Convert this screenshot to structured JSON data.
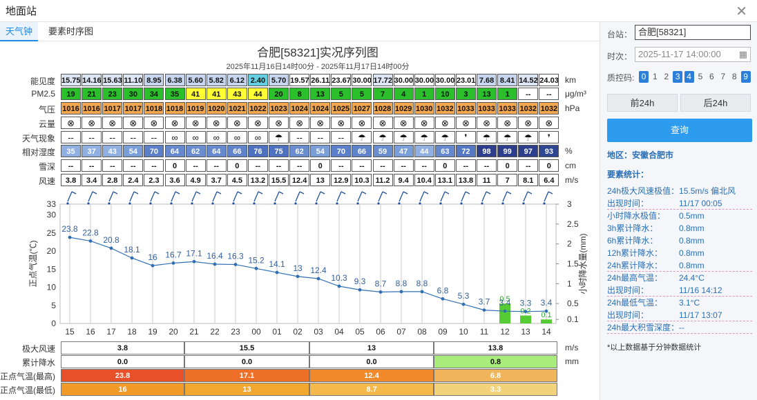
{
  "window": {
    "title": "地面站"
  },
  "tabs": [
    {
      "label": "天气钟",
      "active": true
    },
    {
      "label": "要素时序图",
      "active": false
    }
  ],
  "chart": {
    "title": "合肥[58321]实况序列图",
    "subtitle": "2025年11月16日14时00分 - 2025年11月17日14时00分"
  },
  "hours": [
    "15",
    "16",
    "17",
    "18",
    "19",
    "20",
    "21",
    "22",
    "23",
    "00",
    "01",
    "02",
    "03",
    "04",
    "05",
    "06",
    "07",
    "08",
    "09",
    "10",
    "11",
    "12",
    "13",
    "14"
  ],
  "rows": {
    "visibility": {
      "label": "能见度",
      "unit": "km",
      "values": [
        "15.75",
        "14.16",
        "15.63",
        "11.10",
        "8.95",
        "6.38",
        "5.60",
        "5.82",
        "6.12",
        "2.40",
        "5.70",
        "19.57",
        "26.11",
        "23.67",
        "30.00",
        "17.72",
        "30.00",
        "30.00",
        "30.00",
        "23.01",
        "7.68",
        "8.41",
        "14.52",
        "24.03"
      ],
      "colors": [
        "#dde6f5",
        "#dde6f5",
        "#dde6f5",
        "#dde6f5",
        "#c7d6ee",
        "#c7d6ee",
        "#c7d6ee",
        "#c7d6ee",
        "#c7d6ee",
        "#63cfe0",
        "#c7d6ee",
        "#ffffff",
        "#ffffff",
        "#ffffff",
        "#ffffff",
        "#dde6f5",
        "#ffffff",
        "#ffffff",
        "#ffffff",
        "#ffffff",
        "#c7d6ee",
        "#c7d6ee",
        "#dde6f5",
        "#ffffff"
      ]
    },
    "pm25": {
      "label": "PM2.5",
      "unit": "μg/m³",
      "values": [
        "19",
        "21",
        "23",
        "30",
        "34",
        "35",
        "41",
        "41",
        "43",
        "44",
        "20",
        "8",
        "13",
        "5",
        "5",
        "7",
        "4",
        "1",
        "10",
        "3",
        "13",
        "1",
        "--",
        "--"
      ],
      "colors": [
        "#2bbf2b",
        "#2bbf2b",
        "#2bbf2b",
        "#2bbf2b",
        "#2bbf2b",
        "#2bbf2b",
        "#ffff33",
        "#ffff33",
        "#ffff33",
        "#ffff33",
        "#2bbf2b",
        "#2bbf2b",
        "#2bbf2b",
        "#2bbf2b",
        "#2bbf2b",
        "#2bbf2b",
        "#2bbf2b",
        "#2bbf2b",
        "#2bbf2b",
        "#2bbf2b",
        "#2bbf2b",
        "#2bbf2b",
        "#ffffff",
        "#ffffff"
      ]
    },
    "pressure": {
      "label": "气压",
      "unit": "hPa",
      "values": [
        "1016",
        "1016",
        "1017",
        "1017",
        "1018",
        "1018",
        "1019",
        "1020",
        "1021",
        "1022",
        "1023",
        "1024",
        "1024",
        "1025",
        "1027",
        "1028",
        "1029",
        "1030",
        "1032",
        "1033",
        "1033",
        "1033",
        "1032",
        "1032"
      ],
      "colors": [
        "#f2a650",
        "#f2a650",
        "#f2a650",
        "#f2a650",
        "#f2a650",
        "#f2a650",
        "#f2a650",
        "#f2a650",
        "#f2a650",
        "#f2a650",
        "#f2a650",
        "#f2a650",
        "#f2a650",
        "#f2a650",
        "#f2a650",
        "#f2a650",
        "#f2a650",
        "#f2a650",
        "#f2a650",
        "#f2a650",
        "#f2a650",
        "#f2a650",
        "#f2a650",
        "#f2a650"
      ]
    },
    "cloud": {
      "label": "云量",
      "unit": "",
      "symbol": "⊗"
    },
    "weather": {
      "label": "天气现象",
      "unit": "",
      "values": [
        "--",
        "--",
        "--",
        "--",
        "--",
        "∞",
        "∞",
        "∞",
        "∞",
        "∞",
        "☂",
        "--",
        "--",
        "--",
        "☂",
        "☂",
        "☂",
        "☂",
        "☂",
        "❜",
        "☂",
        "☂",
        "☂",
        "❜"
      ]
    },
    "humidity": {
      "label": "相对湿度",
      "unit": "%",
      "values": [
        "35",
        "37",
        "43",
        "54",
        "70",
        "64",
        "62",
        "64",
        "66",
        "76",
        "75",
        "62",
        "54",
        "70",
        "66",
        "59",
        "47",
        "44",
        "63",
        "72",
        "98",
        "99",
        "97",
        "93"
      ],
      "colors": [
        "#8fb0e0",
        "#8fb0e0",
        "#8fb0e0",
        "#7a9fd8",
        "#5b7fc8",
        "#6589cc",
        "#6a8dcf",
        "#6589cc",
        "#5f84ca",
        "#4e72c0",
        "#4e72c0",
        "#6a8dcf",
        "#7a9fd8",
        "#5b7fc8",
        "#5f84ca",
        "#6a8dcf",
        "#7a9fd8",
        "#8fb0e0",
        "#6589cc",
        "#5578c4",
        "#2d3f8c",
        "#2d3f8c",
        "#2d3f8c",
        "#2f4693"
      ]
    },
    "snow": {
      "label": "雪深",
      "unit": "cm",
      "values": [
        "--",
        "--",
        "--",
        "--",
        "--",
        "0",
        "--",
        "--",
        "0",
        "--",
        "--",
        "--",
        "0",
        "--",
        "--",
        "--",
        "--",
        "--",
        "0",
        "--",
        "--",
        "0",
        "--",
        "0"
      ]
    },
    "wind": {
      "label": "风速",
      "unit": "m/s",
      "values": [
        "3.8",
        "3.4",
        "2.8",
        "2.4",
        "2.3",
        "3.6",
        "4.9",
        "3.7",
        "4.5",
        "13.2",
        "15.5",
        "12.4",
        "13",
        "12.9",
        "10.3",
        "11.2",
        "9.4",
        "10.4",
        "13.1",
        "13.8",
        "11",
        "7",
        "8.1",
        "6.4"
      ]
    }
  },
  "chart_data": {
    "type": "line",
    "x": [
      "15",
      "16",
      "17",
      "18",
      "19",
      "20",
      "21",
      "22",
      "23",
      "00",
      "01",
      "02",
      "03",
      "04",
      "05",
      "06",
      "07",
      "08",
      "09",
      "10",
      "11",
      "12",
      "13",
      "14"
    ],
    "series": [
      {
        "values": [
          23.8,
          22.8,
          20.8,
          18.1,
          16,
          16.7,
          17.1,
          16.4,
          16.3,
          15.2,
          14.1,
          13,
          12.4,
          10.3,
          9.3,
          8.7,
          8.8,
          8.8,
          6.8,
          5.3,
          3.7,
          3.4,
          3.3,
          3.4
        ]
      },
      {
        "values": [
          0,
          0,
          0,
          0,
          0,
          0,
          0,
          0,
          0,
          0,
          0,
          0,
          0,
          0,
          0,
          0,
          0,
          0,
          0,
          0,
          0,
          0.5,
          0.2,
          0.1
        ]
      }
    ],
    "bar_labels": {
      "21": "0.5",
      "22": "0.2",
      "23": "0.1"
    },
    "ylabel": "正点气温(℃)",
    "y2label": "小时降水量(mm)",
    "ylim": [
      0,
      33
    ],
    "y2lim": [
      0,
      3
    ],
    "yticks": [
      "33",
      "30",
      "25",
      "20",
      "15",
      "10",
      "5",
      "0"
    ],
    "y2ticks": [
      "3",
      "2.5",
      "2",
      "1.5",
      "1",
      "0.5",
      "0.1"
    ],
    "line_color": "#2f6fb4",
    "bar_color": "#55cc33"
  },
  "summary": {
    "labels": [
      "极大风速",
      "累计降水",
      "正点气温(最高)",
      "正点气温(最低)"
    ],
    "units": [
      "m/s",
      "mm",
      "",
      ""
    ],
    "segments": [
      {
        "wind": "3.8",
        "rain": "0.0",
        "tmax": "23.8",
        "tmin": "16"
      },
      {
        "wind": "15.5",
        "rain": "0.0",
        "tmax": "17.1",
        "tmin": "13"
      },
      {
        "wind": "13",
        "rain": "0.0",
        "tmax": "12.4",
        "tmin": "8.7"
      },
      {
        "wind": "13.8",
        "rain": "0.8",
        "tmax": "6.8",
        "tmin": "3.3"
      }
    ],
    "colors": {
      "rain": [
        "#ffffff",
        "#ffffff",
        "#ffffff",
        "#a8ec7c"
      ],
      "tmax": [
        "#e8502a",
        "#ee6f28",
        "#f18a2a",
        "#f0b45b"
      ],
      "tmin": [
        "#f29a28",
        "#f2a830",
        "#f4b94a",
        "#f2d27b"
      ]
    }
  },
  "panel": {
    "station_label": "台站：",
    "station_value": "合肥[58321]",
    "time_label": "时次：",
    "time_value": "2025-11-17 14:00:00",
    "qc_label": "质控码:",
    "qc_codes": [
      {
        "v": "0",
        "on": true
      },
      {
        "v": "1",
        "on": false
      },
      {
        "v": "2",
        "on": false
      },
      {
        "v": "3",
        "on": true
      },
      {
        "v": "4",
        "on": true
      },
      {
        "v": "5",
        "on": false
      },
      {
        "v": "6",
        "on": false
      },
      {
        "v": "7",
        "on": false
      },
      {
        "v": "8",
        "on": false
      },
      {
        "v": "9",
        "on": true
      }
    ],
    "prev_btn": "前24h",
    "next_btn": "后24h",
    "query_btn": "查询",
    "region": "地区：安徽合肥市",
    "stats_title": "要素统计：",
    "stats": [
      {
        "k": "24h极大风速极值：",
        "v": "15.5m/s 偏北风",
        "wide": true
      },
      {
        "k": "出现时间：",
        "v": "11/17 00:05",
        "sep": true
      },
      {
        "k": "小时降水极值：",
        "v": "0.5mm"
      },
      {
        "k": "3h累计降水：",
        "v": "0.8mm"
      },
      {
        "k": "6h累计降水：",
        "v": "0.8mm"
      },
      {
        "k": "12h累计降水：",
        "v": "0.8mm"
      },
      {
        "k": "24h累计降水：",
        "v": "0.8mm",
        "sep": true
      },
      {
        "k": "24h最高气温：",
        "v": "24.4°C"
      },
      {
        "k": "出现时间：",
        "v": "11/16 14:12",
        "sep": true
      },
      {
        "k": "24h最低气温：",
        "v": "3.1°C"
      },
      {
        "k": "出现时间：",
        "v": "11/17 13:07",
        "sep": true
      },
      {
        "k": "24h最大积雪深度：",
        "v": "--",
        "wide": true,
        "sep": true
      }
    ],
    "note": "*以上数据基于分钟数据统计"
  }
}
